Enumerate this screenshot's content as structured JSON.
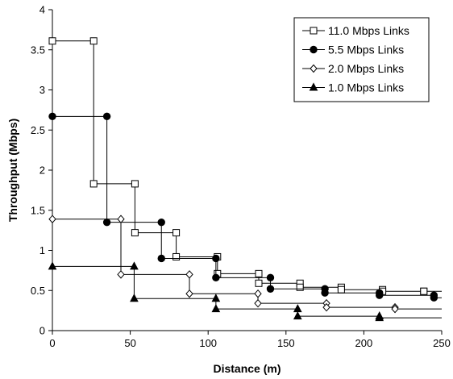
{
  "chart_data": {
    "type": "line",
    "step": true,
    "xlabel": "Distance (m)",
    "ylabel": "Throughput (Mbps)",
    "xlim": [
      0,
      250
    ],
    "ylim": [
      0,
      4
    ],
    "xticks": [
      "0",
      "50",
      "100",
      "150",
      "200",
      "250"
    ],
    "yticks": [
      "0",
      "0.5",
      "1",
      "1.5",
      "2",
      "2.5",
      "3",
      "3.5",
      "4"
    ],
    "grid": false,
    "legend_position": "top-right",
    "series": [
      {
        "name": "11.0 Mbps Links",
        "marker": "open-square",
        "color": "#000000",
        "points": [
          [
            0,
            3.61
          ],
          [
            26.5,
            3.61
          ],
          [
            26.5,
            1.83
          ],
          [
            53,
            1.83
          ],
          [
            53,
            1.22
          ],
          [
            79.5,
            1.22
          ],
          [
            79.5,
            0.92
          ],
          [
            106,
            0.92
          ],
          [
            106,
            0.71
          ],
          [
            132.5,
            0.71
          ],
          [
            132.5,
            0.59
          ],
          [
            159,
            0.59
          ],
          [
            159,
            0.54
          ],
          [
            185.5,
            0.54
          ],
          [
            185.5,
            0.51
          ],
          [
            212,
            0.51
          ],
          [
            212,
            0.49
          ],
          [
            238.5,
            0.49
          ],
          [
            238.5,
            0.49
          ],
          [
            250,
            0.49
          ]
        ]
      },
      {
        "name": "5.5 Mbps Links",
        "marker": "filled-circle",
        "color": "#000000",
        "points": [
          [
            0,
            2.67
          ],
          [
            35,
            2.67
          ],
          [
            35,
            1.35
          ],
          [
            70,
            1.35
          ],
          [
            70,
            0.9
          ],
          [
            105,
            0.9
          ],
          [
            105,
            0.66
          ],
          [
            140,
            0.66
          ],
          [
            140,
            0.52
          ],
          [
            175,
            0.52
          ],
          [
            175,
            0.47
          ],
          [
            210,
            0.47
          ],
          [
            210,
            0.44
          ],
          [
            245,
            0.44
          ],
          [
            245,
            0.41
          ],
          [
            250,
            0.41
          ]
        ]
      },
      {
        "name": "2.0 Mbps Links",
        "marker": "open-diamond",
        "color": "#000000",
        "points": [
          [
            0,
            1.39
          ],
          [
            44,
            1.39
          ],
          [
            44,
            0.7
          ],
          [
            88,
            0.7
          ],
          [
            88,
            0.46
          ],
          [
            132,
            0.46
          ],
          [
            132,
            0.34
          ],
          [
            176,
            0.34
          ],
          [
            176,
            0.29
          ],
          [
            220,
            0.29
          ],
          [
            220,
            0.27
          ],
          [
            250,
            0.27
          ]
        ]
      },
      {
        "name": "1.0 Mbps Links",
        "marker": "filled-triangle",
        "color": "#000000",
        "points": [
          [
            0,
            0.8
          ],
          [
            52.5,
            0.8
          ],
          [
            52.5,
            0.4
          ],
          [
            105,
            0.4
          ],
          [
            105,
            0.27
          ],
          [
            157.5,
            0.27
          ],
          [
            157.5,
            0.18
          ],
          [
            210,
            0.18
          ],
          [
            210,
            0.16
          ],
          [
            250,
            0.16
          ]
        ]
      }
    ]
  }
}
